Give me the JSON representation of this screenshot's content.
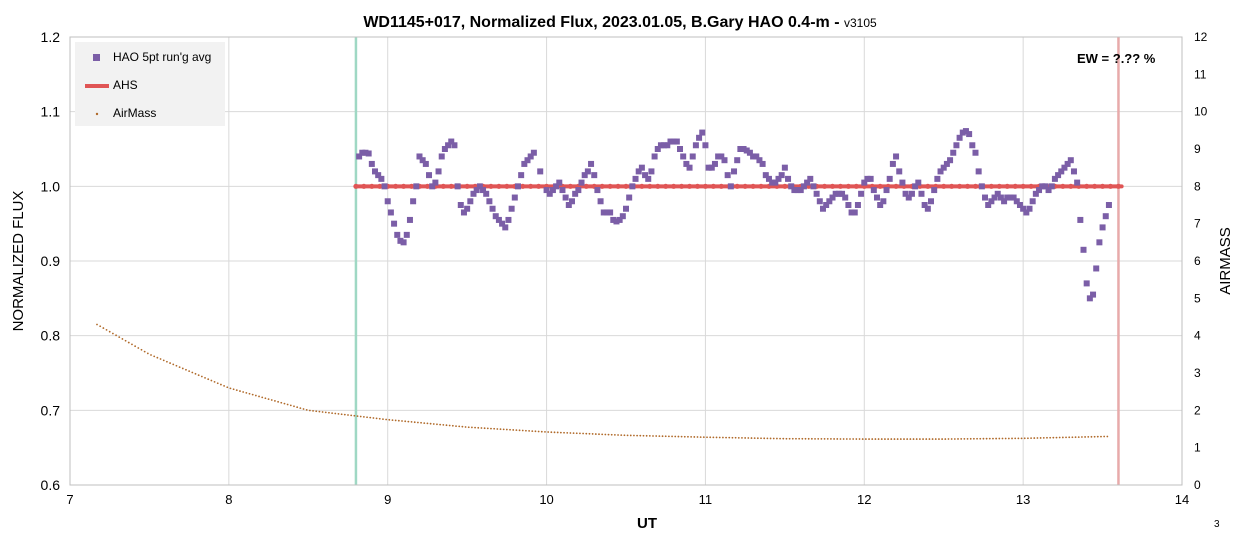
{
  "chart_data": {
    "type": "scatter",
    "title": "WD1145+017, Normalized Flux, 2023.01.05, B.Gary HAO 0.4-m - ",
    "title_suffix": "v3105",
    "xlabel": "UT",
    "ylabel": "NORMALIZED FLUX",
    "y2label": "AIRMASS",
    "xlim": [
      7,
      14
    ],
    "ylim": [
      0.6,
      1.2
    ],
    "y2lim": [
      0,
      12
    ],
    "x_ticks": [
      7,
      8,
      9,
      10,
      11,
      12,
      13,
      14
    ],
    "y_ticks": [
      "0.6",
      "0.7",
      "0.8",
      "0.9",
      "1.0",
      "1.1",
      "1.2"
    ],
    "y2_ticks": [
      0,
      1,
      2,
      3,
      4,
      5,
      6,
      7,
      8,
      9,
      10,
      11,
      12
    ],
    "grid": true,
    "legend_position": "top-left",
    "annotation": "EW = ?.?? %",
    "page_number": "3",
    "vertical_markers": [
      {
        "x": 8.8,
        "color": "#9fd8c4"
      },
      {
        "x": 13.6,
        "color": "#e8aaaa"
      }
    ],
    "series": [
      {
        "name": "HAO 5pt run'g avg",
        "axis": "left",
        "style": "square",
        "color": "#7b5ea7",
        "points": [
          [
            8.82,
            1.04
          ],
          [
            8.84,
            1.045
          ],
          [
            8.86,
            1.045
          ],
          [
            8.88,
            1.044
          ],
          [
            8.9,
            1.03
          ],
          [
            8.92,
            1.02
          ],
          [
            8.94,
            1.015
          ],
          [
            8.96,
            1.01
          ],
          [
            8.98,
            1.0
          ],
          [
            9.0,
            0.98
          ],
          [
            9.02,
            0.965
          ],
          [
            9.04,
            0.95
          ],
          [
            9.06,
            0.935
          ],
          [
            9.08,
            0.927
          ],
          [
            9.1,
            0.925
          ],
          [
            9.12,
            0.935
          ],
          [
            9.14,
            0.955
          ],
          [
            9.16,
            0.98
          ],
          [
            9.18,
            1.0
          ],
          [
            9.2,
            1.04
          ],
          [
            9.22,
            1.035
          ],
          [
            9.24,
            1.03
          ],
          [
            9.26,
            1.015
          ],
          [
            9.28,
            1.0
          ],
          [
            9.3,
            1.005
          ],
          [
            9.32,
            1.02
          ],
          [
            9.34,
            1.04
          ],
          [
            9.36,
            1.05
          ],
          [
            9.38,
            1.055
          ],
          [
            9.4,
            1.06
          ],
          [
            9.42,
            1.055
          ],
          [
            9.44,
            1.0
          ],
          [
            9.46,
            0.975
          ],
          [
            9.48,
            0.965
          ],
          [
            9.5,
            0.97
          ],
          [
            9.52,
            0.98
          ],
          [
            9.54,
            0.99
          ],
          [
            9.56,
            0.995
          ],
          [
            9.58,
            1.0
          ],
          [
            9.6,
            0.995
          ],
          [
            9.62,
            0.99
          ],
          [
            9.64,
            0.98
          ],
          [
            9.66,
            0.97
          ],
          [
            9.68,
            0.96
          ],
          [
            9.7,
            0.955
          ],
          [
            9.72,
            0.95
          ],
          [
            9.74,
            0.945
          ],
          [
            9.76,
            0.955
          ],
          [
            9.78,
            0.97
          ],
          [
            9.8,
            0.985
          ],
          [
            9.82,
            1.0
          ],
          [
            9.84,
            1.015
          ],
          [
            9.86,
            1.03
          ],
          [
            9.88,
            1.035
          ],
          [
            9.9,
            1.04
          ],
          [
            9.92,
            1.045
          ],
          [
            9.96,
            1.02
          ],
          [
            10.0,
            0.995
          ],
          [
            10.02,
            0.99
          ],
          [
            10.04,
            0.995
          ],
          [
            10.06,
            1.0
          ],
          [
            10.08,
            1.005
          ],
          [
            10.1,
            0.995
          ],
          [
            10.12,
            0.985
          ],
          [
            10.14,
            0.975
          ],
          [
            10.16,
            0.98
          ],
          [
            10.18,
            0.99
          ],
          [
            10.2,
            0.995
          ],
          [
            10.22,
            1.005
          ],
          [
            10.24,
            1.015
          ],
          [
            10.26,
            1.02
          ],
          [
            10.28,
            1.03
          ],
          [
            10.3,
            1.015
          ],
          [
            10.32,
            0.995
          ],
          [
            10.34,
            0.98
          ],
          [
            10.36,
            0.965
          ],
          [
            10.38,
            0.965
          ],
          [
            10.4,
            0.965
          ],
          [
            10.42,
            0.955
          ],
          [
            10.44,
            0.953
          ],
          [
            10.46,
            0.955
          ],
          [
            10.48,
            0.96
          ],
          [
            10.5,
            0.97
          ],
          [
            10.52,
            0.985
          ],
          [
            10.54,
            1.0
          ],
          [
            10.56,
            1.01
          ],
          [
            10.58,
            1.02
          ],
          [
            10.6,
            1.025
          ],
          [
            10.62,
            1.015
          ],
          [
            10.64,
            1.01
          ],
          [
            10.66,
            1.02
          ],
          [
            10.68,
            1.04
          ],
          [
            10.7,
            1.05
          ],
          [
            10.72,
            1.055
          ],
          [
            10.74,
            1.055
          ],
          [
            10.76,
            1.055
          ],
          [
            10.78,
            1.06
          ],
          [
            10.8,
            1.06
          ],
          [
            10.82,
            1.06
          ],
          [
            10.84,
            1.05
          ],
          [
            10.86,
            1.04
          ],
          [
            10.88,
            1.03
          ],
          [
            10.9,
            1.025
          ],
          [
            10.92,
            1.04
          ],
          [
            10.94,
            1.055
          ],
          [
            10.96,
            1.065
          ],
          [
            10.98,
            1.072
          ],
          [
            11.0,
            1.055
          ],
          [
            11.02,
            1.025
          ],
          [
            11.04,
            1.025
          ],
          [
            11.06,
            1.03
          ],
          [
            11.08,
            1.04
          ],
          [
            11.1,
            1.04
          ],
          [
            11.12,
            1.035
          ],
          [
            11.14,
            1.015
          ],
          [
            11.16,
            1.0
          ],
          [
            11.18,
            1.02
          ],
          [
            11.2,
            1.035
          ],
          [
            11.22,
            1.05
          ],
          [
            11.24,
            1.05
          ],
          [
            11.26,
            1.048
          ],
          [
            11.28,
            1.045
          ],
          [
            11.3,
            1.04
          ],
          [
            11.32,
            1.04
          ],
          [
            11.34,
            1.035
          ],
          [
            11.36,
            1.03
          ],
          [
            11.38,
            1.015
          ],
          [
            11.4,
            1.01
          ],
          [
            11.42,
            1.005
          ],
          [
            11.44,
            1.005
          ],
          [
            11.46,
            1.01
          ],
          [
            11.48,
            1.015
          ],
          [
            11.5,
            1.025
          ],
          [
            11.52,
            1.01
          ],
          [
            11.54,
            1.0
          ],
          [
            11.56,
            0.995
          ],
          [
            11.58,
            0.995
          ],
          [
            11.6,
            0.995
          ],
          [
            11.62,
            1.0
          ],
          [
            11.64,
            1.005
          ],
          [
            11.66,
            1.01
          ],
          [
            11.68,
            1.0
          ],
          [
            11.7,
            0.99
          ],
          [
            11.72,
            0.98
          ],
          [
            11.74,
            0.97
          ],
          [
            11.76,
            0.975
          ],
          [
            11.78,
            0.98
          ],
          [
            11.8,
            0.985
          ],
          [
            11.82,
            0.99
          ],
          [
            11.84,
            0.99
          ],
          [
            11.86,
            0.99
          ],
          [
            11.88,
            0.985
          ],
          [
            11.9,
            0.975
          ],
          [
            11.92,
            0.965
          ],
          [
            11.94,
            0.965
          ],
          [
            11.96,
            0.975
          ],
          [
            11.98,
            0.99
          ],
          [
            12.0,
            1.005
          ],
          [
            12.02,
            1.01
          ],
          [
            12.04,
            1.01
          ],
          [
            12.06,
            0.995
          ],
          [
            12.08,
            0.985
          ],
          [
            12.1,
            0.975
          ],
          [
            12.12,
            0.98
          ],
          [
            12.14,
            0.995
          ],
          [
            12.16,
            1.01
          ],
          [
            12.18,
            1.03
          ],
          [
            12.2,
            1.04
          ],
          [
            12.22,
            1.02
          ],
          [
            12.24,
            1.005
          ],
          [
            12.26,
            0.99
          ],
          [
            12.28,
            0.985
          ],
          [
            12.3,
            0.99
          ],
          [
            12.32,
            1.0
          ],
          [
            12.34,
            1.005
          ],
          [
            12.36,
            0.99
          ],
          [
            12.38,
            0.975
          ],
          [
            12.4,
            0.97
          ],
          [
            12.42,
            0.98
          ],
          [
            12.44,
            0.995
          ],
          [
            12.46,
            1.01
          ],
          [
            12.48,
            1.02
          ],
          [
            12.5,
            1.025
          ],
          [
            12.52,
            1.03
          ],
          [
            12.54,
            1.035
          ],
          [
            12.56,
            1.045
          ],
          [
            12.58,
            1.055
          ],
          [
            12.6,
            1.065
          ],
          [
            12.62,
            1.072
          ],
          [
            12.64,
            1.074
          ],
          [
            12.66,
            1.07
          ],
          [
            12.68,
            1.055
          ],
          [
            12.7,
            1.045
          ],
          [
            12.72,
            1.02
          ],
          [
            12.74,
            1.0
          ],
          [
            12.76,
            0.985
          ],
          [
            12.78,
            0.975
          ],
          [
            12.8,
            0.98
          ],
          [
            12.82,
            0.985
          ],
          [
            12.84,
            0.99
          ],
          [
            12.86,
            0.985
          ],
          [
            12.88,
            0.98
          ],
          [
            12.9,
            0.985
          ],
          [
            12.92,
            0.985
          ],
          [
            12.94,
            0.985
          ],
          [
            12.96,
            0.98
          ],
          [
            12.98,
            0.975
          ],
          [
            13.0,
            0.97
          ],
          [
            13.02,
            0.965
          ],
          [
            13.04,
            0.97
          ],
          [
            13.06,
            0.98
          ],
          [
            13.08,
            0.99
          ],
          [
            13.1,
            0.995
          ],
          [
            13.12,
            1.0
          ],
          [
            13.14,
            1.0
          ],
          [
            13.16,
            0.995
          ],
          [
            13.18,
            1.0
          ],
          [
            13.2,
            1.01
          ],
          [
            13.22,
            1.015
          ],
          [
            13.24,
            1.02
          ],
          [
            13.26,
            1.025
          ],
          [
            13.28,
            1.03
          ],
          [
            13.3,
            1.035
          ],
          [
            13.32,
            1.02
          ],
          [
            13.34,
            1.005
          ],
          [
            13.36,
            0.955
          ],
          [
            13.38,
            0.915
          ],
          [
            13.4,
            0.87
          ],
          [
            13.42,
            0.85
          ],
          [
            13.44,
            0.855
          ],
          [
            13.46,
            0.89
          ],
          [
            13.48,
            0.925
          ],
          [
            13.5,
            0.945
          ],
          [
            13.52,
            0.96
          ],
          [
            13.54,
            0.975
          ]
        ]
      },
      {
        "name": "AHS",
        "axis": "left",
        "style": "line",
        "color": "#e05555",
        "points": [
          [
            8.8,
            1.0
          ],
          [
            13.62,
            1.0
          ]
        ]
      },
      {
        "name": "AirMass",
        "axis": "right",
        "style": "dot",
        "color": "#b06a2a",
        "x_range": [
          7.17,
          13.53
        ],
        "model": "secant",
        "values_at": [
          [
            7.17,
            4.3
          ],
          [
            7.5,
            3.5
          ],
          [
            8.0,
            2.6
          ],
          [
            8.5,
            2.0
          ],
          [
            9.0,
            1.75
          ],
          [
            9.5,
            1.55
          ],
          [
            10.0,
            1.42
          ],
          [
            10.5,
            1.33
          ],
          [
            11.0,
            1.28
          ],
          [
            11.5,
            1.24
          ],
          [
            12.0,
            1.23
          ],
          [
            12.5,
            1.23
          ],
          [
            13.0,
            1.25
          ],
          [
            13.53,
            1.3
          ]
        ]
      }
    ]
  }
}
